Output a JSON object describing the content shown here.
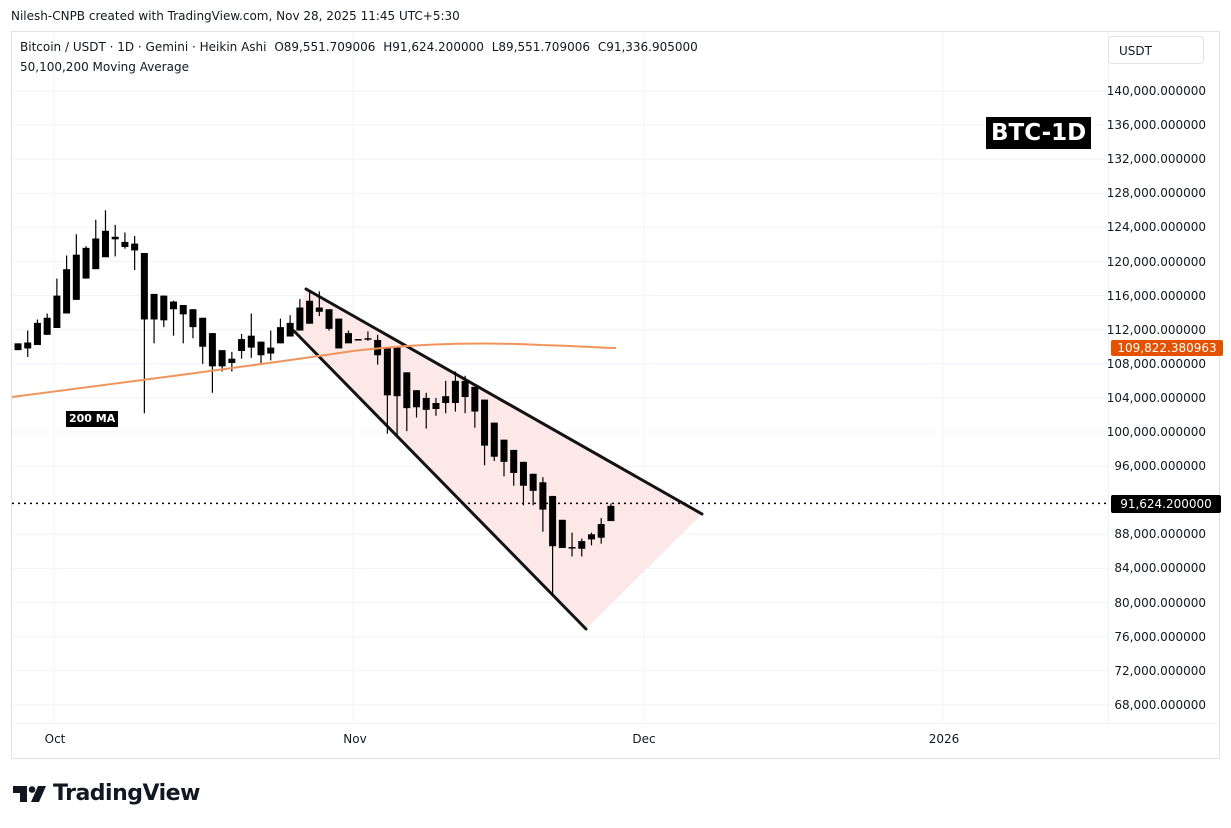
{
  "header": {
    "credit": "Nilesh-CNPB created with TradingView.com, Nov 28, 2025 11:45 UTC+5:30"
  },
  "legend": {
    "symbol_line": "Bitcoin / USDT · 1D · Gemini · Heikin Ashi",
    "open": "O89,551.709006",
    "high": "H91,624.200000",
    "low": "L89,551.709006",
    "close": "C91,336.905000",
    "indicator": "50,100,200 Moving Average"
  },
  "price_axis": {
    "currency_button": "USDT",
    "ticks": [
      "140,000.000000",
      "136,000.000000",
      "132,000.000000",
      "128,000.000000",
      "124,000.000000",
      "120,000.000000",
      "116,000.000000",
      "112,000.000000",
      "108,000.000000",
      "104,000.000000",
      "100,000.000000",
      "96,000.000000",
      "88,000.000000",
      "84,000.000000",
      "80,000.000000",
      "76,000.000000",
      "72,000.000000",
      "68,000.000000"
    ],
    "ma_badge": "109,822.380963",
    "last_price_badge": "91,624.200000"
  },
  "time_axis": {
    "labels": [
      "Oct",
      "Nov",
      "Dec",
      "2026"
    ]
  },
  "annotations": {
    "title_label": "BTC-1D",
    "ma_label": "200 MA"
  },
  "footer": {
    "brand": "TradingView"
  },
  "colors": {
    "candle": "#000000",
    "ma200": "#f0945c",
    "ma_badge": "#e65100",
    "wedge_fill": "#fde4e4",
    "trendline": "#131313",
    "grid": "#f0f3fa"
  },
  "chart_data": {
    "type": "candlestick",
    "title": "Bitcoin / USDT · 1D · Gemini · Heikin Ashi",
    "subtitle": "50,100,200 Moving Average",
    "xlabel": "",
    "ylabel": "USDT",
    "ylim": [
      66000,
      142000
    ],
    "x_ticks": [
      "Oct",
      "Nov",
      "Dec",
      "2026"
    ],
    "y_ticks": [
      68000,
      72000,
      76000,
      80000,
      84000,
      88000,
      92000,
      96000,
      100000,
      104000,
      108000,
      112000,
      116000,
      120000,
      124000,
      128000,
      132000,
      136000,
      140000
    ],
    "grid": true,
    "last_ohlc": {
      "open": 89551.709006,
      "high": 91624.2,
      "low": 89551.709006,
      "close": 91336.905
    },
    "last_price": 91624.2,
    "ma200_last": 109822.380963,
    "candles_approx": [
      {
        "date": "2025-09-28",
        "open": 110400,
        "high": 110400,
        "low": 110100,
        "close": 109600
      },
      {
        "date": "2025-09-29",
        "open": 110500,
        "high": 111900,
        "low": 108800,
        "close": 109800
      },
      {
        "date": "2025-09-30",
        "open": 110200,
        "high": 113200,
        "low": 110200,
        "close": 112800
      },
      {
        "date": "2025-10-01",
        "open": 111400,
        "high": 113900,
        "low": 111400,
        "close": 113400
      },
      {
        "date": "2025-10-02",
        "open": 112200,
        "high": 118000,
        "low": 112200,
        "close": 116000
      },
      {
        "date": "2025-10-03",
        "open": 113900,
        "high": 120700,
        "low": 113900,
        "close": 119100
      },
      {
        "date": "2025-10-04",
        "open": 115500,
        "high": 123200,
        "low": 115500,
        "close": 120800
      },
      {
        "date": "2025-10-05",
        "open": 118000,
        "high": 121800,
        "low": 118000,
        "close": 121600
      },
      {
        "date": "2025-10-06",
        "open": 119100,
        "high": 124900,
        "low": 119100,
        "close": 122700
      },
      {
        "date": "2025-10-07",
        "open": 120500,
        "high": 126000,
        "low": 120500,
        "close": 123600
      },
      {
        "date": "2025-10-08",
        "open": 122900,
        "high": 124300,
        "low": 120600,
        "close": 122600
      },
      {
        "date": "2025-10-09",
        "open": 122300,
        "high": 123400,
        "low": 121500,
        "close": 121700
      },
      {
        "date": "2025-10-10",
        "open": 122100,
        "high": 123000,
        "low": 119000,
        "close": 121300
      },
      {
        "date": "2025-10-11",
        "open": 121000,
        "high": 121000,
        "low": 102200,
        "close": 113200
      },
      {
        "date": "2025-10-12",
        "open": 113200,
        "high": 115700,
        "low": 110400,
        "close": 116200
      },
      {
        "date": "2025-10-13",
        "open": 113100,
        "high": 116000,
        "low": 112300,
        "close": 116000
      },
      {
        "date": "2025-10-14",
        "open": 114400,
        "high": 115400,
        "low": 111300,
        "close": 115300
      },
      {
        "date": "2025-10-15",
        "open": 113800,
        "high": 114600,
        "low": 110400,
        "close": 114900
      },
      {
        "date": "2025-10-16",
        "open": 112300,
        "high": 114400,
        "low": 111000,
        "close": 114400
      },
      {
        "date": "2025-10-17",
        "open": 110000,
        "high": 113400,
        "low": 108000,
        "close": 113400
      },
      {
        "date": "2025-10-18",
        "open": 107700,
        "high": 111600,
        "low": 104600,
        "close": 111600
      },
      {
        "date": "2025-10-19",
        "open": 107700,
        "high": 109600,
        "low": 107100,
        "close": 109600
      },
      {
        "date": "2025-10-20",
        "open": 108100,
        "high": 109400,
        "low": 107100,
        "close": 108600
      },
      {
        "date": "2025-10-21",
        "open": 109500,
        "high": 111500,
        "low": 108600,
        "close": 110900
      },
      {
        "date": "2025-10-22",
        "open": 109900,
        "high": 113900,
        "low": 108700,
        "close": 111300
      },
      {
        "date": "2025-10-23",
        "open": 109000,
        "high": 110600,
        "low": 108000,
        "close": 110600
      },
      {
        "date": "2025-10-24",
        "open": 109200,
        "high": 111900,
        "low": 108400,
        "close": 109900
      },
      {
        "date": "2025-10-25",
        "open": 110400,
        "high": 113300,
        "low": 110400,
        "close": 112300
      },
      {
        "date": "2025-10-26",
        "open": 111200,
        "high": 113700,
        "low": 111200,
        "close": 112800
      },
      {
        "date": "2025-10-27",
        "open": 111900,
        "high": 115600,
        "low": 111900,
        "close": 114600
      },
      {
        "date": "2025-10-28",
        "open": 112700,
        "high": 116500,
        "low": 112700,
        "close": 115400
      },
      {
        "date": "2025-10-29",
        "open": 114600,
        "high": 116500,
        "low": 113600,
        "close": 114100
      },
      {
        "date": "2025-10-30",
        "open": 114400,
        "high": 114400,
        "low": 111900,
        "close": 112100
      },
      {
        "date": "2025-10-31",
        "open": 113300,
        "high": 113300,
        "low": 109900,
        "close": 109800
      },
      {
        "date": "2025-11-01",
        "open": 111600,
        "high": 111900,
        "low": 110900,
        "close": 110400
      },
      {
        "date": "2025-11-02",
        "open": 110800,
        "high": 110900,
        "low": 110800,
        "close": 110900
      },
      {
        "date": "2025-11-03",
        "open": 110900,
        "high": 111800,
        "low": 110700,
        "close": 111000
      },
      {
        "date": "2025-11-04",
        "open": 110800,
        "high": 111400,
        "low": 107900,
        "close": 109000
      },
      {
        "date": "2025-11-05",
        "open": 109900,
        "high": 109900,
        "low": 99800,
        "close": 104300
      },
      {
        "date": "2025-11-06",
        "open": 109900,
        "high": 109900,
        "low": 99600,
        "close": 104200
      },
      {
        "date": "2025-11-07",
        "open": 107000,
        "high": 107000,
        "low": 100100,
        "close": 102800
      },
      {
        "date": "2025-11-08",
        "open": 104900,
        "high": 104900,
        "low": 101700,
        "close": 102900
      },
      {
        "date": "2025-11-09",
        "open": 104000,
        "high": 104600,
        "low": 100400,
        "close": 102600
      },
      {
        "date": "2025-11-10",
        "open": 103400,
        "high": 104000,
        "low": 101900,
        "close": 102700
      },
      {
        "date": "2025-11-11",
        "open": 103400,
        "high": 106000,
        "low": 102200,
        "close": 104200
      },
      {
        "date": "2025-11-12",
        "open": 106000,
        "high": 107100,
        "low": 102400,
        "close": 103400
      },
      {
        "date": "2025-11-13",
        "open": 106000,
        "high": 106600,
        "low": 102200,
        "close": 104100
      },
      {
        "date": "2025-11-14",
        "open": 105300,
        "high": 105300,
        "low": 100500,
        "close": 102400
      },
      {
        "date": "2025-11-15",
        "open": 103800,
        "high": 103800,
        "low": 96100,
        "close": 98400
      },
      {
        "date": "2025-11-16",
        "open": 101100,
        "high": 101100,
        "low": 96600,
        "close": 97100
      },
      {
        "date": "2025-11-17",
        "open": 99100,
        "high": 99100,
        "low": 94800,
        "close": 96500
      },
      {
        "date": "2025-11-18",
        "open": 97900,
        "high": 97900,
        "low": 93700,
        "close": 95200
      },
      {
        "date": "2025-11-19",
        "open": 96500,
        "high": 96500,
        "low": 91400,
        "close": 93700
      },
      {
        "date": "2025-11-20",
        "open": 95100,
        "high": 95100,
        "low": 91400,
        "close": 93100
      },
      {
        "date": "2025-11-21",
        "open": 94100,
        "high": 94700,
        "low": 88300,
        "close": 90900
      },
      {
        "date": "2025-11-22",
        "open": 92500,
        "high": 92500,
        "low": 80800,
        "close": 86600
      },
      {
        "date": "2025-11-23",
        "open": 89700,
        "high": 89700,
        "low": 86400,
        "close": 86400
      },
      {
        "date": "2025-11-24",
        "open": 86500,
        "high": 88200,
        "low": 85400,
        "close": 86500
      },
      {
        "date": "2025-11-25",
        "open": 86300,
        "high": 87500,
        "low": 85400,
        "close": 87200
      },
      {
        "date": "2025-11-26",
        "open": 87400,
        "high": 88200,
        "low": 86700,
        "close": 88000
      },
      {
        "date": "2025-11-27",
        "open": 87600,
        "high": 89900,
        "low": 86900,
        "close": 89200
      },
      {
        "date": "2025-11-28",
        "open": 89551.7,
        "high": 91624.2,
        "low": 89551.7,
        "close": 91336.9
      }
    ],
    "ma200_series_approx": [
      {
        "date": "2025-09-28",
        "value": 105900
      },
      {
        "date": "2025-10-15",
        "value": 107600
      },
      {
        "date": "2025-11-01",
        "value": 109300
      },
      {
        "date": "2025-11-12",
        "value": 110100
      },
      {
        "date": "2025-11-20",
        "value": 110100
      },
      {
        "date": "2025-11-28",
        "value": 109822.38
      }
    ],
    "annotations": [
      {
        "type": "falling_wedge_upper",
        "from": {
          "date": "2025-10-27",
          "price": 116800
        },
        "to": {
          "date": "2025-12-06",
          "price": 90400
        }
      },
      {
        "type": "falling_wedge_lower",
        "from": {
          "date": "2025-10-27",
          "price": 113300
        },
        "to": {
          "date": "2025-11-25",
          "price": 76800
        }
      },
      {
        "type": "label",
        "text": "BTC-1D"
      },
      {
        "type": "label",
        "text": "200 MA"
      }
    ]
  }
}
